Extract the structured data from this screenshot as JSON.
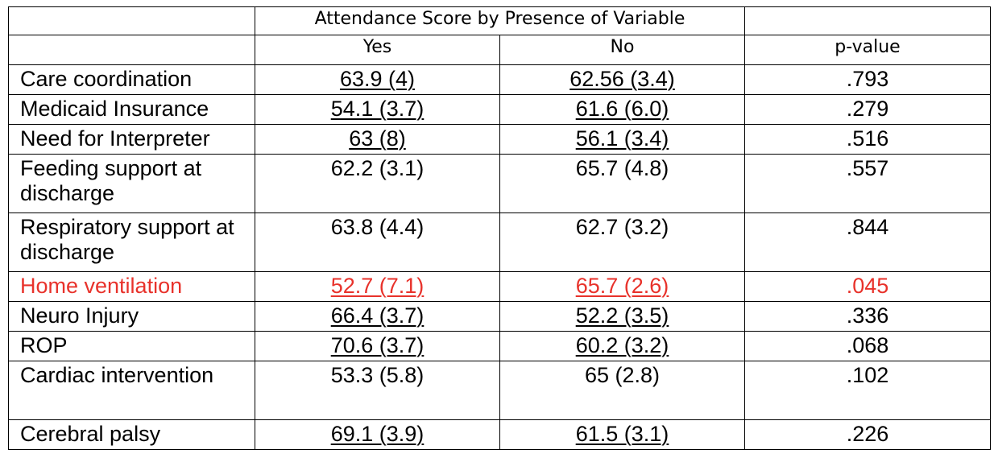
{
  "header": {
    "group_title": "Attendance Score by Presence of Variable",
    "col_yes": "Yes",
    "col_no": "No",
    "col_pvalue": "p-value"
  },
  "rows": [
    {
      "label": "Care coordination",
      "yes": "63.9 (4)",
      "no": "62.56 (3.4)",
      "p": ".793"
    },
    {
      "label": "Medicaid Insurance",
      "yes": "54.1 (3.7)",
      "no": "61.6 (6.0)",
      "p": ".279"
    },
    {
      "label": "Need for Interpreter",
      "yes": "63 (8)",
      "no": "56.1 (3.4)",
      "p": ".516"
    },
    {
      "label": "Feeding support at discharge",
      "yes": "62.2 (3.1)",
      "no": "65.7 (4.8)",
      "p": ".557"
    },
    {
      "label": "Respiratory support at discharge",
      "yes": "63.8 (4.4)",
      "no": "62.7 (3.2)",
      "p": ".844"
    },
    {
      "label": "Home ventilation",
      "yes": "52.7 (7.1)",
      "no": "65.7 (2.6)",
      "p": ".045"
    },
    {
      "label": "Neuro Injury",
      "yes": "66.4 (3.7)",
      "no": "52.2 (3.5)",
      "p": ".336"
    },
    {
      "label": "ROP",
      "yes": "70.6 (3.7)",
      "no": "60.2 (3.2)",
      "p": ".068"
    },
    {
      "label": "Cardiac intervention",
      "yes": "53.3 (5.8)",
      "no": "65 (2.8)",
      "p": ".102"
    },
    {
      "label": "Cerebral palsy",
      "yes": "69.1 (3.9)",
      "no": "61.5 (3.1)",
      "p": ".226"
    }
  ],
  "colors": {
    "highlight": "#e8322b",
    "text": "#000000",
    "border": "#000000"
  }
}
